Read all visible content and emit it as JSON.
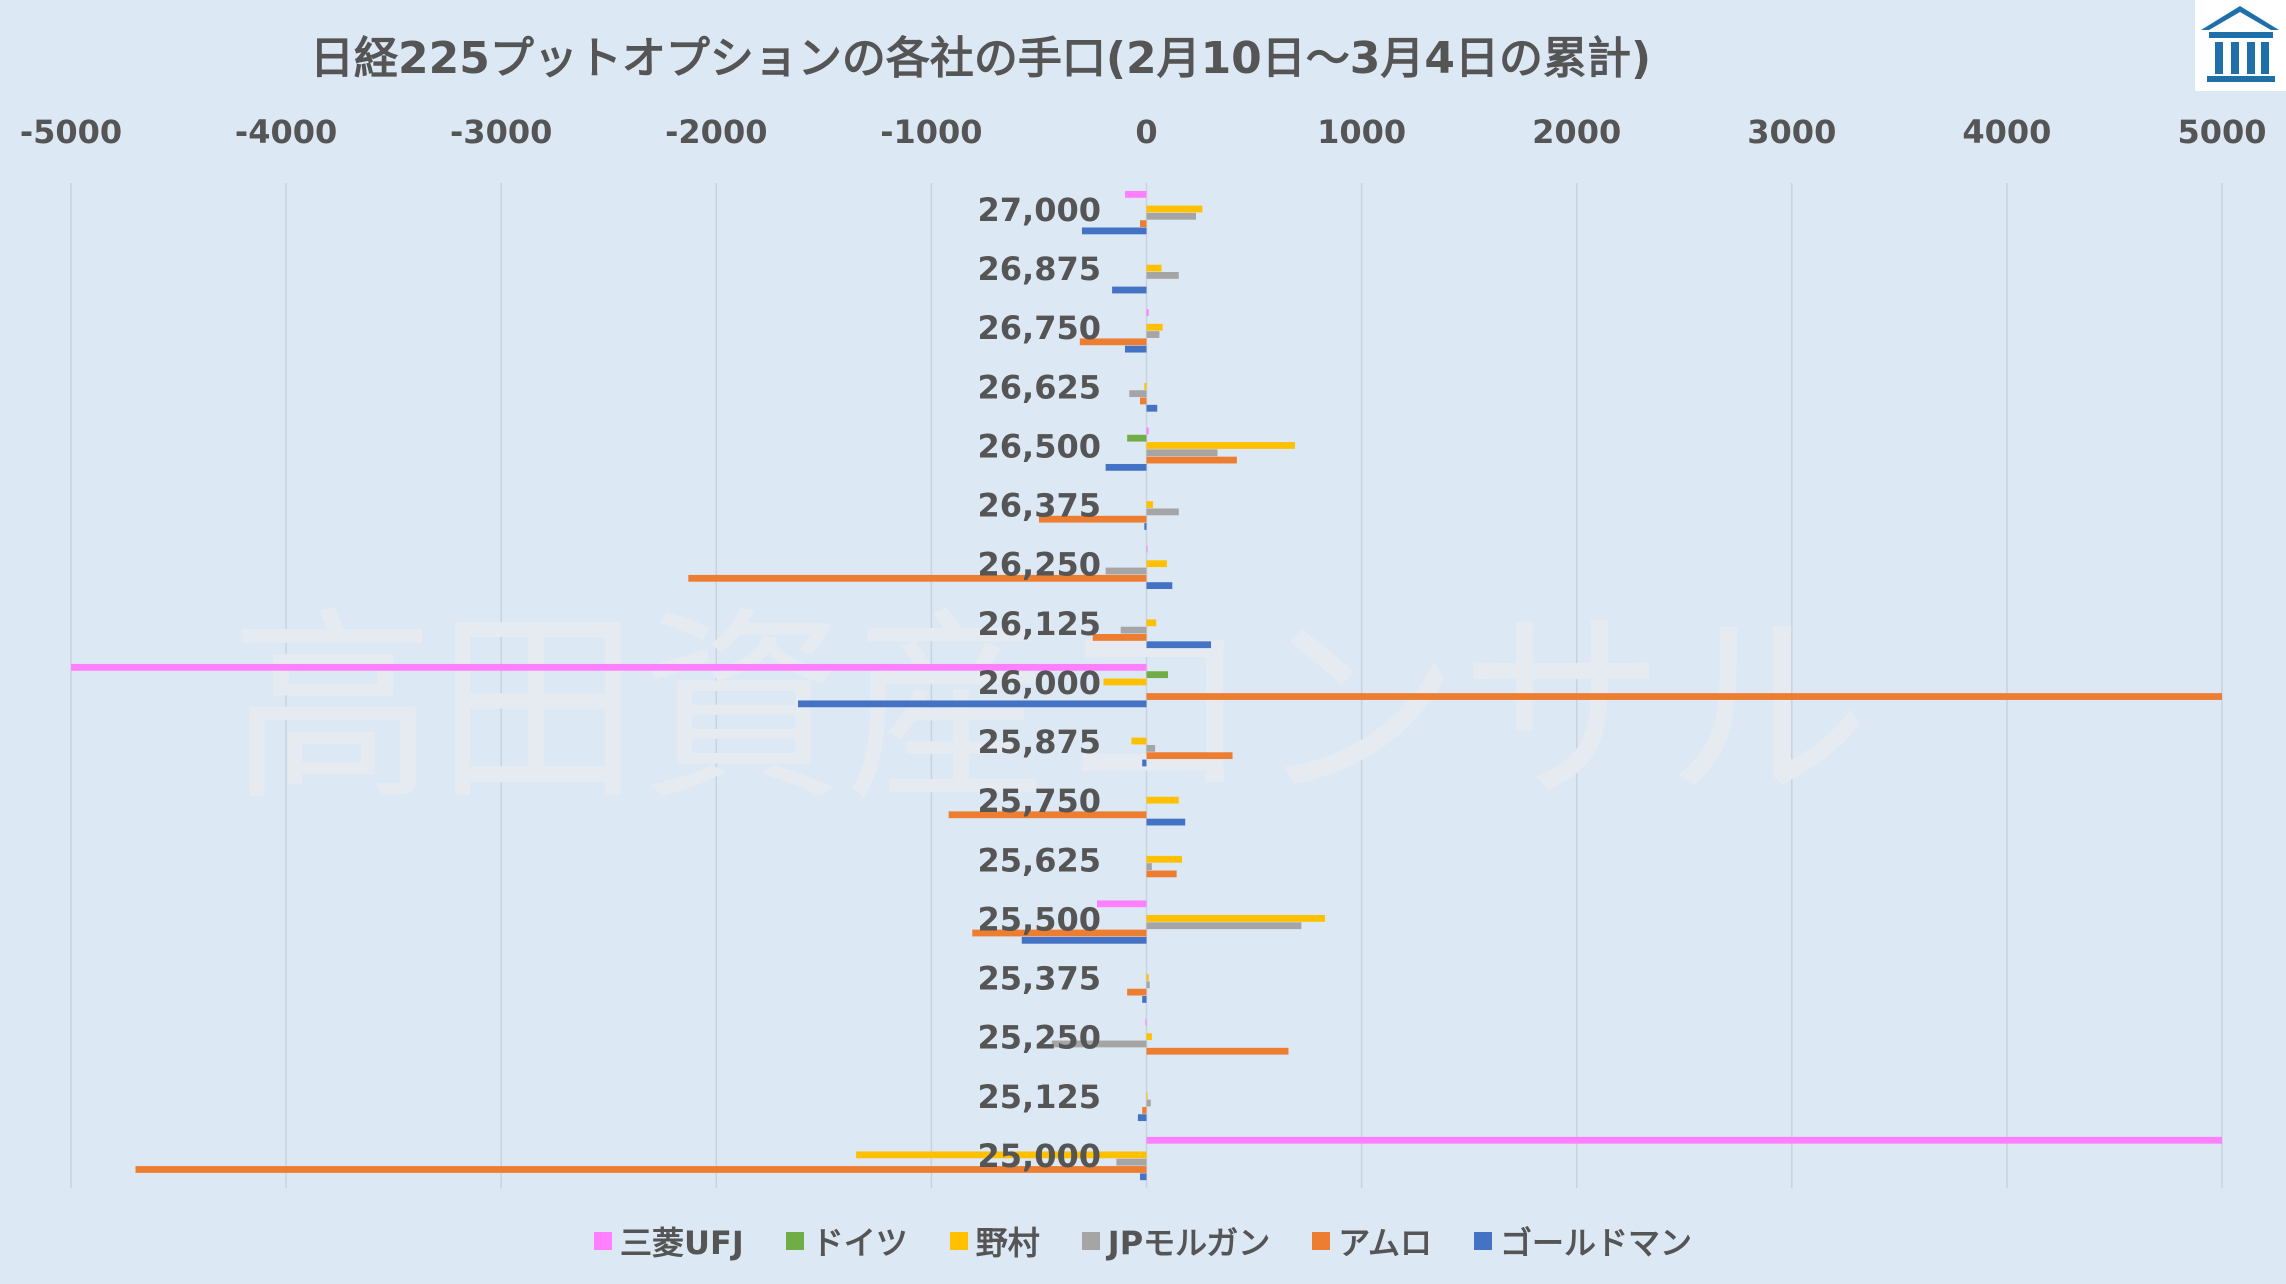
{
  "chart_data": {
    "type": "bar",
    "orientation": "horizontal",
    "title": "日経225プットオプションの各社の手口(2月10日～3月4日の累計)",
    "watermark": "高田資産コンサル",
    "xlim": [
      -5000,
      5000
    ],
    "x_ticks": [
      "-5000",
      "-4000",
      "-3000",
      "-2000",
      "-1000",
      "0",
      "1000",
      "2000",
      "3000",
      "4000",
      "5000"
    ],
    "x_tick_values": [
      -5000,
      -4000,
      -3000,
      -2000,
      -1000,
      0,
      1000,
      2000,
      3000,
      4000,
      5000
    ],
    "x_axis_position": "top",
    "grid": "vertical",
    "legend_position": "bottom",
    "categories": [
      "27,000",
      "26,875",
      "26,750",
      "26,625",
      "26,500",
      "26,375",
      "26,250",
      "26,125",
      "26,000",
      "25,875",
      "25,750",
      "25,625",
      "25,500",
      "25,375",
      "25,250",
      "25,125",
      "25,000"
    ],
    "series": [
      {
        "name": "三菱UFJ",
        "color": "#ff80ff",
        "values": [
          -100,
          0,
          10,
          0,
          10,
          0,
          5,
          0,
          -5000,
          0,
          0,
          0,
          -230,
          0,
          -5,
          0,
          5000
        ]
      },
      {
        "name": "ドイツ",
        "color": "#70ad47",
        "values": [
          0,
          0,
          0,
          0,
          -90,
          0,
          0,
          0,
          100,
          0,
          0,
          0,
          0,
          0,
          0,
          0,
          0
        ]
      },
      {
        "name": "野村",
        "color": "#ffc000",
        "values": [
          260,
          70,
          75,
          -10,
          690,
          30,
          95,
          45,
          -200,
          -70,
          150,
          165,
          830,
          10,
          25,
          5,
          -1350
        ]
      },
      {
        "name": "JPモルガン",
        "color": "#a5a5a5",
        "values": [
          230,
          150,
          60,
          -80,
          330,
          150,
          -190,
          -120,
          0,
          40,
          0,
          25,
          720,
          15,
          -440,
          20,
          -140
        ]
      },
      {
        "name": "アムロ",
        "color": "#ed7d31",
        "values": [
          -30,
          0,
          -310,
          -30,
          420,
          -500,
          -2130,
          -250,
          5000,
          400,
          -920,
          140,
          -810,
          -90,
          660,
          -20,
          -4700
        ]
      },
      {
        "name": "ゴールドマン",
        "color": "#4472c4",
        "values": [
          -300,
          -160,
          -100,
          50,
          -190,
          -10,
          120,
          300,
          -1620,
          -20,
          180,
          0,
          -580,
          -20,
          0,
          -40,
          -30
        ]
      }
    ]
  },
  "logo": {
    "name": "logo-icon",
    "colors": [
      "#1f6fa8",
      "#ffffff"
    ]
  }
}
